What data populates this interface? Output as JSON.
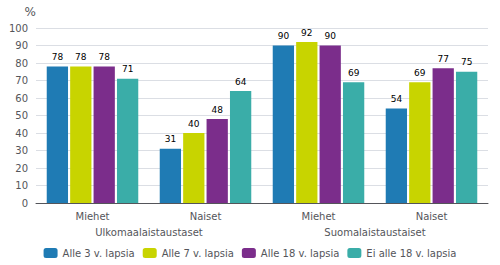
{
  "chart_data": {
    "type": "bar",
    "categories": [
      "Miehet",
      "Naiset",
      "Miehet",
      "Naiset"
    ],
    "series": [
      {
        "name": "Alle 3 v. lapsia",
        "color": "#1f7bb4",
        "values": [
          78,
          31,
          90,
          54
        ]
      },
      {
        "name": "Alle 7 v. lapsia",
        "color": "#c8d400",
        "values": [
          78,
          40,
          92,
          69
        ]
      },
      {
        "name": "Alle 18 v. lapsia",
        "color": "#7b2d8b",
        "values": [
          78,
          48,
          90,
          77
        ]
      },
      {
        "name": "Ei alle 18 v. lapsia",
        "color": "#3aada8",
        "values": [
          71,
          64,
          69,
          75
        ]
      }
    ],
    "annotations": [
      "Ulkomaalaistaustaset",
      "Suomalaistaustaiset"
    ],
    "ylabel": "%",
    "ylim": [
      0,
      100
    ],
    "yticks": [
      0,
      10,
      20,
      30,
      40,
      50,
      60,
      70,
      80,
      90,
      100
    ],
    "grid": true,
    "data_labels": true,
    "legend": "bottom"
  }
}
